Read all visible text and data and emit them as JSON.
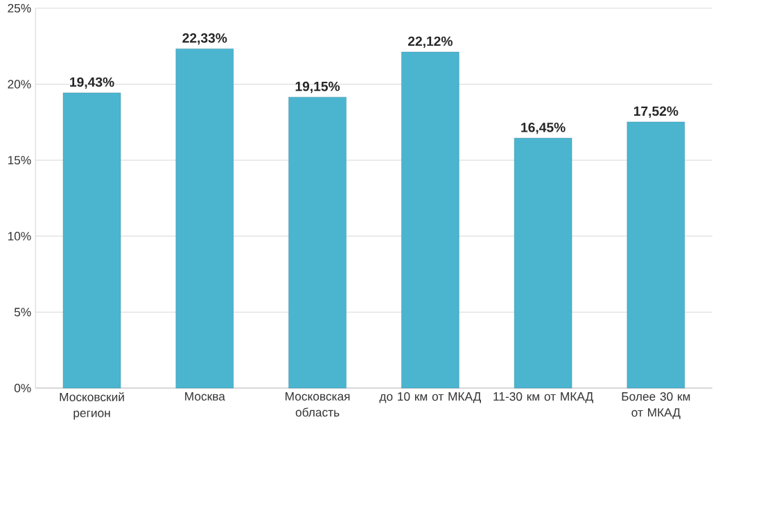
{
  "chart_data": {
    "type": "bar",
    "categories": [
      "Московский регион",
      "Москва",
      "Московская область",
      "до 10 км от МКАД",
      "11-30 км от МКАД",
      "Более 30 км от МКАД"
    ],
    "values": [
      19.43,
      22.33,
      19.15,
      22.12,
      16.45,
      17.52
    ],
    "value_labels": [
      "19,43%",
      "22,33%",
      "19,15%",
      "22,12%",
      "16,45%",
      "17,52%"
    ],
    "color": "#4bb5d0",
    "ylim": [
      0,
      25
    ],
    "yticks": [
      {
        "value": 0,
        "label": "0%"
      },
      {
        "value": 5,
        "label": "5%"
      },
      {
        "value": 10,
        "label": "10%"
      },
      {
        "value": 15,
        "label": "15%"
      },
      {
        "value": 20,
        "label": "20%"
      },
      {
        "value": 25,
        "label": "25%"
      }
    ],
    "grid": "y"
  }
}
